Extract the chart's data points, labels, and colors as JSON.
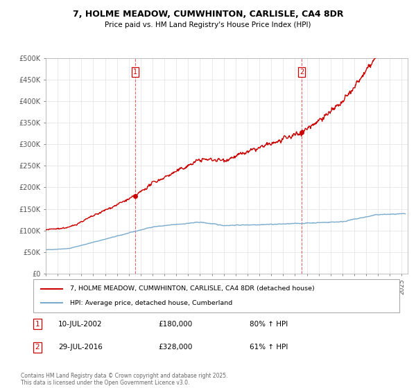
{
  "title_line1": "7, HOLME MEADOW, CUMWHINTON, CARLISLE, CA4 8DR",
  "title_line2": "Price paid vs. HM Land Registry's House Price Index (HPI)",
  "legend_entry1": "7, HOLME MEADOW, CUMWHINTON, CARLISLE, CA4 8DR (detached house)",
  "legend_entry2": "HPI: Average price, detached house, Cumberland",
  "annotation1_label": "1",
  "annotation1_date": "10-JUL-2002",
  "annotation1_price": "£180,000",
  "annotation1_pct": "80% ↑ HPI",
  "annotation2_label": "2",
  "annotation2_date": "29-JUL-2016",
  "annotation2_price": "£328,000",
  "annotation2_pct": "61% ↑ HPI",
  "footer": "Contains HM Land Registry data © Crown copyright and database right 2025.\nThis data is licensed under the Open Government Licence v3.0.",
  "house_color": "#cc0000",
  "hpi_color": "#7aabcc",
  "sale1_value": 180000,
  "sale1_year": 2002.53,
  "sale2_value": 328000,
  "sale2_year": 2016.57,
  "ylim_min": 0,
  "ylim_max": 500000,
  "xlim_min": 1995,
  "xlim_max": 2025.5,
  "background_color": "#ffffff",
  "grid_color": "#e0e0e0"
}
